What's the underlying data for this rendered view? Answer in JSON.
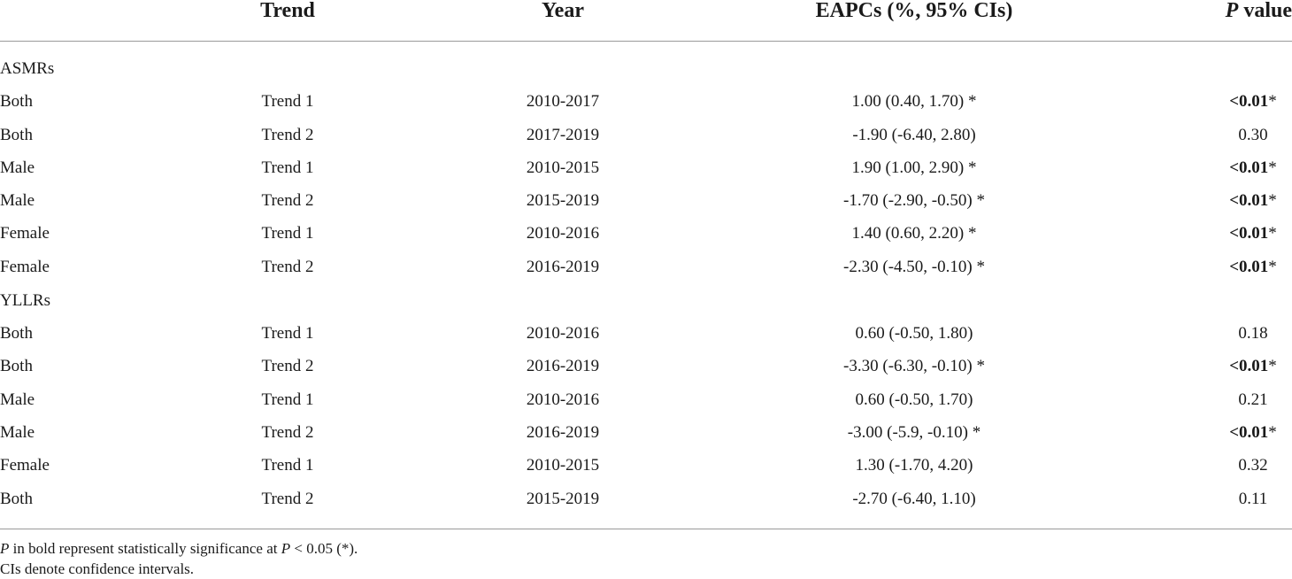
{
  "table": {
    "headers": {
      "group": "",
      "trend": "Trend",
      "year": "Year",
      "eapc": "EAPCs (%, 95% CIs)",
      "p_italic": "P",
      "p_rest": " value"
    },
    "rows": [
      {
        "group": "ASMRs",
        "trend": "",
        "year": "",
        "eapc": "",
        "p": ""
      },
      {
        "group": "Both",
        "trend": "Trend 1",
        "year": "2010-2017",
        "eapc": "1.00 (0.40, 1.70) *",
        "p": "<0.01",
        "p_star": "*"
      },
      {
        "group": "Both",
        "trend": "Trend 2",
        "year": "2017-2019",
        "eapc": "-1.90 (-6.40, 2.80)",
        "p": "0.30",
        "p_star": ""
      },
      {
        "group": "Male",
        "trend": "Trend 1",
        "year": "2010-2015",
        "eapc": "1.90 (1.00, 2.90) *",
        "p": "<0.01",
        "p_star": "*"
      },
      {
        "group": "Male",
        "trend": "Trend 2",
        "year": "2015-2019",
        "eapc": "-1.70 (-2.90, -0.50) *",
        "p": "<0.01",
        "p_star": "*"
      },
      {
        "group": "Female",
        "trend": "Trend 1",
        "year": "2010-2016",
        "eapc": "1.40 (0.60, 2.20) *",
        "p": "<0.01",
        "p_star": "*"
      },
      {
        "group": "Female",
        "trend": "Trend 2",
        "year": "2016-2019",
        "eapc": "-2.30 (-4.50, -0.10) *",
        "p": "<0.01",
        "p_star": "*"
      },
      {
        "group": "YLLRs",
        "trend": "",
        "year": "",
        "eapc": "",
        "p": ""
      },
      {
        "group": "Both",
        "trend": "Trend 1",
        "year": "2010-2016",
        "eapc": "0.60 (-0.50, 1.80)",
        "p": "0.18",
        "p_star": ""
      },
      {
        "group": "Both",
        "trend": "Trend 2",
        "year": "2016-2019",
        "eapc": "-3.30 (-6.30, -0.10) *",
        "p": "<0.01",
        "p_star": "*"
      },
      {
        "group": "Male",
        "trend": "Trend 1",
        "year": "2010-2016",
        "eapc": "0.60 (-0.50, 1.70)",
        "p": "0.21",
        "p_star": ""
      },
      {
        "group": "Male",
        "trend": "Trend 2",
        "year": "2016-2019",
        "eapc": "-3.00 (-5.9, -0.10) *",
        "p": "<0.01",
        "p_star": "*"
      },
      {
        "group": "Female",
        "trend": "Trend 1",
        "year": "2010-2015",
        "eapc": "1.30 (-1.70, 4.20)",
        "p": "0.32",
        "p_star": ""
      },
      {
        "group": "Both",
        "trend": "Trend 2",
        "year": "2015-2019",
        "eapc": "-2.70 (-6.40, 1.10)",
        "p": "0.11",
        "p_star": ""
      }
    ]
  },
  "notes": {
    "line1_p": "P",
    "line1_mid": " in bold represent statistically significance at ",
    "line1_p2": "P",
    "line1_end": " < 0.05 (*).",
    "line2": "CIs denote confidence intervals."
  }
}
